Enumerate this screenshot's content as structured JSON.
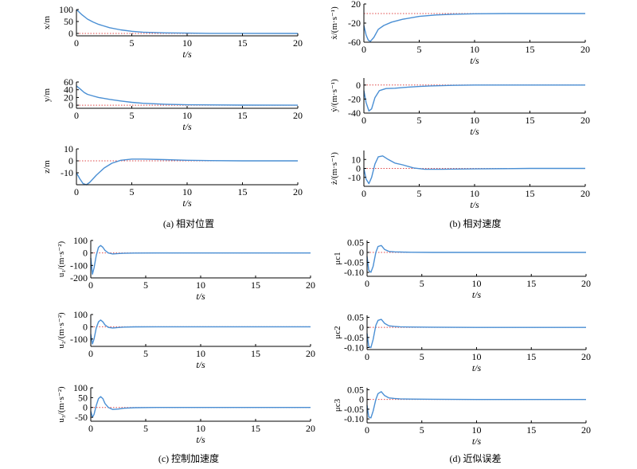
{
  "figure": {
    "captions": {
      "a": "(a) 相对位置",
      "b": "(b) 相对速度",
      "c": "(c) 控制加速度",
      "d": "(d) 近似误差"
    }
  },
  "colors": {
    "response": "#4a8fd4",
    "reference": "#e04848",
    "axis": "#000000"
  },
  "chart_data": [
    {
      "id": "x",
      "type": "line",
      "ylabel": "x/m",
      "xlabel": "t/s",
      "xlim": [
        0,
        20
      ],
      "ylim": [
        -10,
        100
      ],
      "xticks": [
        "0",
        "5",
        "10",
        "15",
        "20"
      ],
      "yticks": [
        "0",
        "50",
        "100"
      ],
      "x": [
        0,
        0.5,
        1,
        1.5,
        2,
        3,
        4,
        5,
        6,
        8,
        10,
        12,
        15,
        20
      ],
      "values": [
        100,
        78,
        60,
        48,
        38,
        24,
        15,
        9,
        5.5,
        2.5,
        1.2,
        0.5,
        0.2,
        0
      ],
      "reference": 0,
      "grid": false
    },
    {
      "id": "y",
      "type": "line",
      "ylabel": "y/m",
      "xlabel": "t/s",
      "xlim": [
        0,
        20
      ],
      "ylim": [
        -8,
        60
      ],
      "xticks": [
        "0",
        "5",
        "10",
        "15",
        "20"
      ],
      "yticks": [
        "0",
        "20",
        "40",
        "60"
      ],
      "x": [
        0,
        0.3,
        0.7,
        1,
        1.5,
        2,
        3,
        4,
        5,
        6,
        8,
        10,
        15,
        20
      ],
      "values": [
        50,
        43,
        33,
        28,
        24,
        20,
        15,
        11,
        7.5,
        5,
        2.5,
        1,
        0.3,
        0
      ],
      "reference": 0,
      "grid": false
    },
    {
      "id": "z",
      "type": "line",
      "ylabel": "z/m",
      "xlabel": "t/s",
      "xlim": [
        0,
        20
      ],
      "ylim": [
        -20,
        10
      ],
      "xticks": [
        "0",
        "5",
        "10",
        "15",
        "20"
      ],
      "yticks": [
        "-10",
        "0",
        "10"
      ],
      "x": [
        0,
        0.3,
        0.6,
        0.9,
        1.2,
        1.8,
        2.5,
        3.2,
        4,
        5,
        6,
        8,
        10,
        12,
        15,
        20
      ],
      "values": [
        -10,
        -15,
        -19,
        -20,
        -18,
        -12,
        -6,
        -2,
        0.5,
        1.5,
        1.5,
        1,
        0.5,
        0.2,
        0,
        0
      ],
      "reference": 0,
      "grid": false
    },
    {
      "id": "vx",
      "type": "line",
      "ylabel": "ẋ/(m·s⁻¹)",
      "xlabel": "t/s",
      "xlim": [
        0,
        20
      ],
      "ylim": [
        -60,
        20
      ],
      "xticks": [
        "0",
        "5",
        "10",
        "15",
        "20"
      ],
      "yticks": [
        "-60",
        "-20",
        "20"
      ],
      "x": [
        0,
        0.2,
        0.4,
        0.6,
        0.9,
        1.3,
        1.8,
        2.5,
        3.5,
        5,
        6.5,
        8,
        10,
        13,
        16,
        20
      ],
      "values": [
        -25,
        -45,
        -56,
        -58,
        -50,
        -33,
        -25,
        -18,
        -12,
        -6,
        -3,
        -1.5,
        -0.5,
        0,
        0,
        0
      ],
      "reference": 0,
      "grid": false
    },
    {
      "id": "vy",
      "type": "line",
      "ylabel": "ẏ/(m·s⁻¹)",
      "xlabel": "t/s",
      "xlim": [
        0,
        20
      ],
      "ylim": [
        -40,
        10
      ],
      "xticks": [
        "0",
        "5",
        "10",
        "15",
        "20"
      ],
      "yticks": [
        "-40",
        "-20",
        "0"
      ],
      "x": [
        0,
        0.2,
        0.45,
        0.7,
        1,
        1.4,
        2,
        2.8,
        4,
        5,
        6,
        8,
        10,
        13,
        16,
        20
      ],
      "values": [
        -8,
        -25,
        -37,
        -34,
        -18,
        -8,
        -5,
        -4.5,
        -3,
        -2,
        -1.2,
        -0.5,
        0,
        0,
        0,
        0
      ],
      "reference": 0,
      "grid": false
    },
    {
      "id": "vz",
      "type": "line",
      "ylabel": "ż/(m·s⁻¹)",
      "xlabel": "t/s",
      "xlim": [
        0,
        20
      ],
      "ylim": [
        -20,
        20
      ],
      "xticks": [
        "0",
        "5",
        "10",
        "15",
        "20"
      ],
      "yticks": [
        "-10",
        "0",
        "10"
      ],
      "x": [
        0,
        0.2,
        0.45,
        0.7,
        1,
        1.3,
        1.7,
        2.2,
        2.8,
        3.5,
        4.5,
        5.5,
        7,
        10,
        15,
        20
      ],
      "values": [
        0,
        -12,
        -17,
        -10,
        5,
        13,
        14,
        10,
        6,
        4,
        0.5,
        -1,
        -1,
        -0.5,
        0,
        0
      ],
      "reference": 0,
      "grid": false
    },
    {
      "id": "u1",
      "type": "line",
      "ylabel": "u₁/(m·s⁻²)",
      "xlabel": "t/s",
      "xlim": [
        0,
        20
      ],
      "ylim": [
        -200,
        100
      ],
      "xticks": [
        "0",
        "5",
        "10",
        "15",
        "20"
      ],
      "yticks": [
        "-200",
        "-100",
        "0",
        "100"
      ],
      "x": [
        0,
        0.15,
        0.3,
        0.5,
        0.7,
        0.9,
        1.1,
        1.3,
        1.6,
        2,
        2.5,
        3,
        4,
        6,
        10,
        20
      ],
      "values": [
        -40,
        -170,
        -120,
        -20,
        45,
        60,
        45,
        20,
        0,
        -8,
        -5,
        -3,
        -1,
        0,
        0,
        0
      ],
      "reference": 0,
      "grid": false
    },
    {
      "id": "u2",
      "type": "line",
      "ylabel": "u₂/(m·s⁻²)",
      "xlabel": "t/s",
      "xlim": [
        0,
        20
      ],
      "ylim": [
        -160,
        100
      ],
      "xticks": [
        "0",
        "5",
        "10",
        "15",
        "20"
      ],
      "yticks": [
        "-100",
        "0",
        "100"
      ],
      "x": [
        0,
        0.15,
        0.3,
        0.5,
        0.7,
        0.9,
        1.1,
        1.3,
        1.6,
        2,
        2.5,
        3,
        4,
        6,
        10,
        20
      ],
      "values": [
        -60,
        -140,
        -100,
        -10,
        40,
        55,
        40,
        15,
        -5,
        -10,
        -6,
        -3,
        -1,
        0,
        0,
        0
      ],
      "reference": 0,
      "grid": false
    },
    {
      "id": "u3",
      "type": "line",
      "ylabel": "u₃/(m·s⁻²)",
      "xlabel": "t/s",
      "xlim": [
        0,
        20
      ],
      "ylim": [
        -70,
        100
      ],
      "xticks": [
        "0",
        "5",
        "10",
        "15",
        "20"
      ],
      "yticks": [
        "-50",
        "0",
        "50",
        "100"
      ],
      "x": [
        0,
        0.15,
        0.3,
        0.5,
        0.7,
        0.9,
        1.1,
        1.3,
        1.6,
        2,
        2.5,
        3,
        4,
        6,
        10,
        20
      ],
      "values": [
        -20,
        -50,
        -35,
        10,
        45,
        55,
        45,
        20,
        0,
        -10,
        -8,
        -4,
        -1,
        0,
        0,
        0
      ],
      "reference": 0,
      "grid": false
    },
    {
      "id": "mu1",
      "type": "line",
      "ylabel": "μc1",
      "xlabel": "t/s",
      "xlim": [
        0,
        20
      ],
      "ylim": [
        -0.12,
        0.06
      ],
      "xticks": [
        "0",
        "5",
        "10",
        "15",
        "20"
      ],
      "yticks": [
        "-0.10",
        "-0.05",
        "0",
        "0.05"
      ],
      "x": [
        0,
        0.15,
        0.35,
        0.55,
        0.8,
        1,
        1.3,
        1.6,
        2,
        2.5,
        3,
        4,
        6,
        10,
        20
      ],
      "values": [
        -0.02,
        -0.09,
        -0.1,
        -0.07,
        0,
        0.03,
        0.035,
        0.015,
        0.005,
        0.003,
        0.002,
        0.001,
        0,
        0,
        0
      ],
      "reference": 0,
      "grid": false
    },
    {
      "id": "mu2",
      "type": "line",
      "ylabel": "μc2",
      "xlabel": "t/s",
      "xlim": [
        0,
        20
      ],
      "ylim": [
        -0.11,
        0.06
      ],
      "xticks": [
        "0",
        "5",
        "10",
        "15",
        "20"
      ],
      "yticks": [
        "-0.10",
        "-0.05",
        "0",
        "0.05"
      ],
      "x": [
        0,
        0.15,
        0.35,
        0.55,
        0.8,
        1,
        1.3,
        1.6,
        2,
        2.5,
        3,
        4,
        6,
        10,
        20
      ],
      "values": [
        -0.03,
        -0.095,
        -0.1,
        -0.06,
        0.01,
        0.035,
        0.04,
        0.02,
        0.008,
        0.005,
        0.003,
        0.002,
        0.001,
        0,
        0
      ],
      "reference": 0,
      "grid": false
    },
    {
      "id": "mu3",
      "type": "line",
      "ylabel": "μc3",
      "xlabel": "t/s",
      "xlim": [
        0,
        20
      ],
      "ylim": [
        -0.12,
        0.06
      ],
      "xticks": [
        "0",
        "5",
        "10",
        "15",
        "20"
      ],
      "yticks": [
        "-0.10",
        "-0.05",
        "0",
        "0.05"
      ],
      "x": [
        0,
        0.15,
        0.35,
        0.55,
        0.8,
        1,
        1.3,
        1.6,
        2,
        2.5,
        3,
        4,
        6,
        10,
        20
      ],
      "values": [
        -0.03,
        -0.09,
        -0.095,
        -0.06,
        0,
        0.03,
        0.04,
        0.02,
        0.008,
        0.005,
        0.003,
        0.002,
        0.001,
        0,
        0
      ],
      "reference": 0,
      "grid": false
    }
  ]
}
